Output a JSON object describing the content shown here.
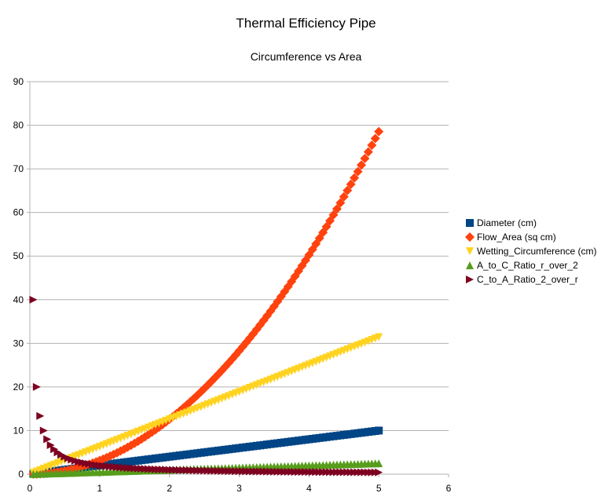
{
  "chart_data": {
    "type": "scatter",
    "title": "Thermal Efficiency Pipe",
    "subtitle": "Circumference vs Area",
    "xlabel": "",
    "ylabel": "",
    "xlim": [
      0,
      6
    ],
    "ylim": [
      0,
      90
    ],
    "x_ticks": [
      "0",
      "1",
      "2",
      "3",
      "4",
      "5",
      "6"
    ],
    "y_ticks": [
      "0",
      "10",
      "20",
      "30",
      "40",
      "50",
      "60",
      "70",
      "80",
      "90"
    ],
    "grid": "horizontal",
    "legend_position": "right",
    "x_range": {
      "start": 0.05,
      "end": 5.0,
      "step": 0.05
    },
    "series": [
      {
        "name": "Diameter (cm)",
        "color": "#004586",
        "marker": "square",
        "formula": "2*r",
        "sample_values": [
          [
            0.05,
            0.1
          ],
          [
            1,
            2
          ],
          [
            2,
            4
          ],
          [
            3,
            6
          ],
          [
            4,
            8
          ],
          [
            5,
            10
          ]
        ]
      },
      {
        "name": "Flow_Area (sq cm)",
        "color": "#ff420e",
        "marker": "diamond",
        "formula": "pi*r^2",
        "sample_values": [
          [
            0.05,
            0.008
          ],
          [
            1,
            3.14
          ],
          [
            2,
            12.57
          ],
          [
            3,
            28.27
          ],
          [
            4,
            50.27
          ],
          [
            5,
            78.54
          ]
        ]
      },
      {
        "name": "Wetting_Circumference (cm)",
        "color": "#ffd320",
        "marker": "triangle-down",
        "formula": "2*pi*r",
        "sample_values": [
          [
            0.05,
            0.31
          ],
          [
            1,
            6.28
          ],
          [
            2,
            12.57
          ],
          [
            3,
            18.85
          ],
          [
            4,
            25.13
          ],
          [
            5,
            31.42
          ]
        ]
      },
      {
        "name": "A_to_C_Ratio_r_over_2",
        "color": "#579d1c",
        "marker": "triangle-up",
        "formula": "r/2",
        "sample_values": [
          [
            0.05,
            0.025
          ],
          [
            1,
            0.5
          ],
          [
            2,
            1
          ],
          [
            3,
            1.5
          ],
          [
            4,
            2
          ],
          [
            5,
            2.5
          ]
        ]
      },
      {
        "name": "C_to_A_Ratio_2_over_r",
        "color": "#7e0021",
        "marker": "triangle-right",
        "formula": "2/r",
        "sample_values": [
          [
            0.05,
            40
          ],
          [
            0.1,
            20
          ],
          [
            0.15,
            13.33
          ],
          [
            0.2,
            10
          ],
          [
            0.5,
            4
          ],
          [
            1,
            2
          ],
          [
            2,
            1
          ],
          [
            5,
            0.4
          ]
        ]
      }
    ]
  }
}
